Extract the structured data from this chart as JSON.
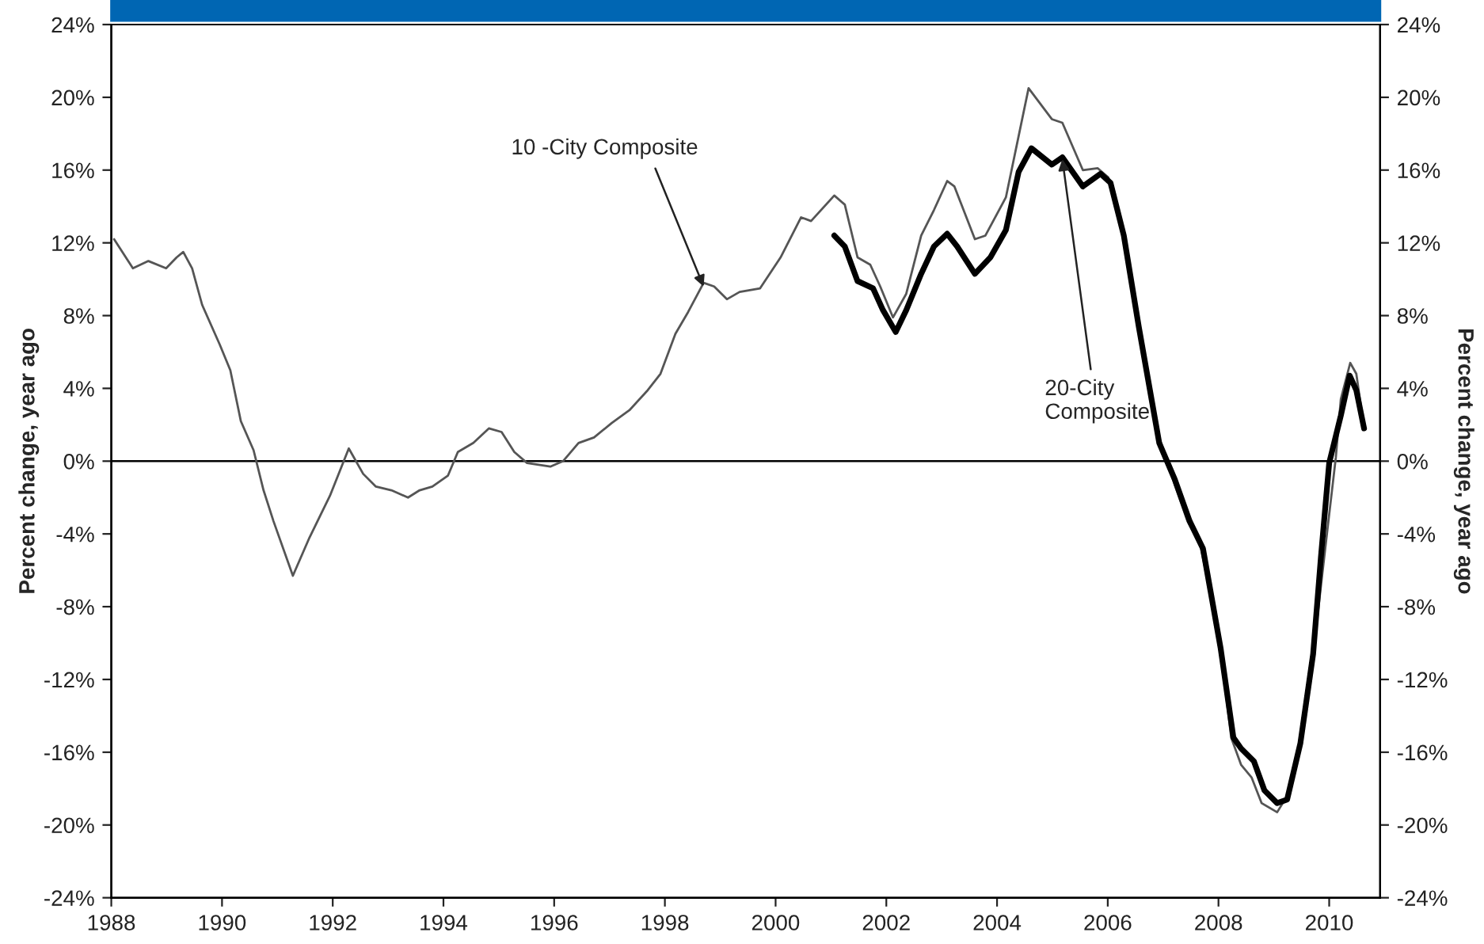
{
  "chart_data": {
    "type": "line",
    "ylabel": "Percent change, year ago",
    "y2label": "Percent change, year ago",
    "xlim": [
      1988,
      2010.92
    ],
    "xticks": [
      1988,
      1990,
      1992,
      1994,
      1996,
      1998,
      2000,
      2002,
      2004,
      2006,
      2008,
      2010
    ],
    "ylim": [
      -24,
      24
    ],
    "yticks": [
      {
        "value": -24,
        "label": "-24%"
      },
      {
        "value": -20,
        "label": "-20%"
      },
      {
        "value": -16,
        "label": "-16%"
      },
      {
        "value": -12,
        "label": "-12%"
      },
      {
        "value": -8,
        "label": "-8%"
      },
      {
        "value": -4,
        "label": "-4%"
      },
      {
        "value": 0,
        "label": "0%"
      },
      {
        "value": 4,
        "label": "4%"
      },
      {
        "value": 8,
        "label": "8%"
      },
      {
        "value": 12,
        "label": "12%"
      },
      {
        "value": 16,
        "label": "16%"
      },
      {
        "value": 20,
        "label": "20%"
      },
      {
        "value": 24,
        "label": "24%"
      }
    ],
    "y2lim": [
      -24,
      24
    ],
    "y2ticks": [
      {
        "value": -24,
        "label": "-24%"
      },
      {
        "value": -20,
        "label": "-20%"
      },
      {
        "value": -16,
        "label": "-16%"
      },
      {
        "value": -12,
        "label": "-12%"
      },
      {
        "value": -8,
        "label": "-8%"
      },
      {
        "value": -4,
        "label": "-4%"
      },
      {
        "value": 0,
        "label": "0%"
      },
      {
        "value": 4,
        "label": "4%"
      },
      {
        "value": 8,
        "label": "8%"
      },
      {
        "value": 12,
        "label": "12%"
      },
      {
        "value": 16,
        "label": "16%"
      },
      {
        "value": 20,
        "label": "20%"
      },
      {
        "value": 24,
        "label": "24%"
      }
    ],
    "grid": false,
    "legend": false,
    "marker": "none",
    "line_style": "solid",
    "ref_lines": [
      {
        "axis": "y",
        "value": 0,
        "label": null,
        "color": "#000000"
      }
    ],
    "series": [
      {
        "color": "#555555",
        "x": [
          1988.05,
          1988.39,
          1988.67,
          1988.99,
          1989.18,
          1989.3,
          1989.46,
          1989.64,
          1989.96,
          1990.15,
          1990.34,
          1990.57,
          1990.75,
          1990.93,
          1991.28,
          1991.58,
          1991.95,
          1992.29,
          1992.55,
          1992.78,
          1993.06,
          1993.36,
          1993.57,
          1993.8,
          1994.08,
          1994.26,
          1994.54,
          1994.82,
          1995.05,
          1995.28,
          1995.51,
          1995.93,
          1996.16,
          1996.44,
          1996.72,
          1997.04,
          1997.36,
          1997.69,
          1997.92,
          1998.19,
          1998.42,
          1998.7,
          1998.89,
          1999.12,
          1999.35,
          1999.72,
          2000.09,
          2000.46,
          2000.64,
          2001.06,
          2001.25,
          2001.48,
          2001.71,
          2001.89,
          2002.12,
          2002.36,
          2002.63,
          2002.86,
          2003.1,
          2003.23,
          2003.6,
          2003.79,
          2004.16,
          2004.57,
          2004.99,
          2005.18,
          2005.55,
          2005.82,
          2006.01,
          2006.24,
          2006.56,
          2006.93,
          2007.21,
          2007.44,
          2007.67,
          2008.0,
          2008.23,
          2008.41,
          2008.6,
          2008.78,
          2009.06,
          2009.24,
          2009.48,
          2009.71,
          2009.94,
          2010.12,
          2010.21,
          2010.38,
          2010.49,
          2010.63
        ],
        "values": [
          12.2,
          10.6,
          11.0,
          10.6,
          11.2,
          11.5,
          10.6,
          8.6,
          6.4,
          5.0,
          2.2,
          0.6,
          -1.6,
          -3.3,
          -6.3,
          -4.2,
          -1.9,
          0.7,
          -0.7,
          -1.4,
          -1.6,
          -2.0,
          -1.6,
          -1.4,
          -0.8,
          0.5,
          1.0,
          1.8,
          1.6,
          0.5,
          -0.1,
          -0.3,
          0.0,
          1.0,
          1.3,
          2.1,
          2.8,
          3.9,
          4.8,
          7.0,
          8.2,
          9.8,
          9.6,
          8.9,
          9.3,
          9.5,
          11.2,
          13.4,
          13.2,
          14.6,
          14.1,
          11.2,
          10.8,
          9.6,
          7.9,
          9.2,
          12.4,
          13.8,
          15.4,
          15.1,
          12.2,
          12.4,
          14.5,
          20.5,
          18.8,
          18.6,
          16.0,
          16.1,
          15.6,
          13.0,
          7.4,
          1.3,
          -1.3,
          -3.3,
          -4.6,
          -9.4,
          -15.2,
          -16.7,
          -17.4,
          -18.8,
          -19.3,
          -18.4,
          -15.5,
          -10.6,
          -4.5,
          0.2,
          3.4,
          5.4,
          4.8,
          1.8
        ]
      },
      {
        "color": "#000000",
        "x": [
          2001.06,
          2001.25,
          2001.48,
          2001.76,
          2001.94,
          2002.17,
          2002.36,
          2002.63,
          2002.86,
          2003.1,
          2003.28,
          2003.6,
          2003.88,
          2004.16,
          2004.39,
          2004.62,
          2004.99,
          2005.18,
          2005.55,
          2005.87,
          2006.05,
          2006.29,
          2006.56,
          2006.93,
          2007.21,
          2007.48,
          2007.72,
          2008.04,
          2008.27,
          2008.41,
          2008.64,
          2008.83,
          2009.06,
          2009.24,
          2009.48,
          2009.71,
          2009.85,
          2010.0,
          2010.21,
          2010.37,
          2010.49,
          2010.63
        ],
        "values": [
          12.4,
          11.8,
          9.9,
          9.5,
          8.3,
          7.1,
          8.3,
          10.3,
          11.8,
          12.5,
          11.8,
          10.3,
          11.2,
          12.7,
          15.9,
          17.2,
          16.3,
          16.7,
          15.1,
          15.8,
          15.3,
          12.4,
          7.4,
          1.0,
          -1.0,
          -3.3,
          -4.8,
          -10.3,
          -15.2,
          -15.8,
          -16.5,
          -18.1,
          -18.8,
          -18.6,
          -15.5,
          -10.6,
          -5.3,
          -0.1,
          2.5,
          4.7,
          3.9,
          1.8
        ]
      }
    ],
    "annotations": [
      {
        "text": "10 -City Composite",
        "x": 1998.7,
        "y": 9.6
      },
      {
        "text": "20-City\nComposite",
        "x": 2005.18,
        "y": 16.6
      }
    ]
  }
}
